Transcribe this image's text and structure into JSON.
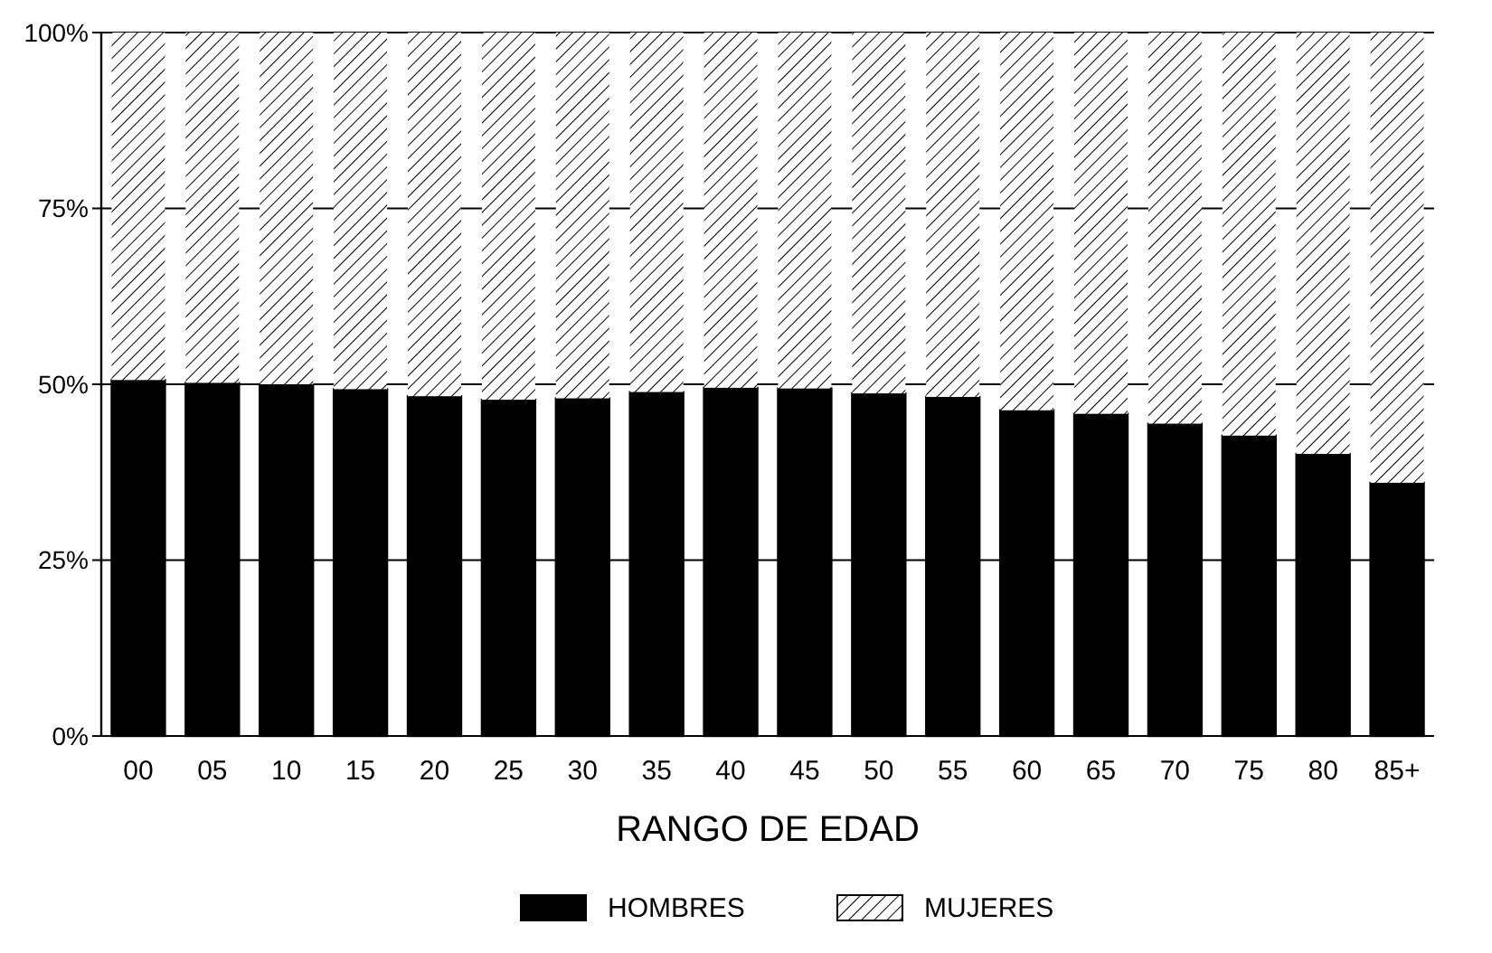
{
  "chart_data": {
    "type": "bar",
    "stacked": true,
    "xlabel": "RANGO DE EDAD",
    "categories": [
      "00",
      "05",
      "10",
      "15",
      "20",
      "25",
      "30",
      "35",
      "40",
      "45",
      "50",
      "55",
      "60",
      "65",
      "70",
      "75",
      "80",
      "85+"
    ],
    "series": [
      {
        "name": "HOMBRES",
        "color": "#000000",
        "values": [
          50.6,
          50.2,
          50,
          49.3,
          48.3,
          47.8,
          48,
          48.9,
          49.5,
          49.4,
          48.7,
          48.2,
          46.3,
          45.8,
          44.4,
          42.7,
          40.1,
          36
        ]
      },
      {
        "name": "MUJERES",
        "color": "#ffffff",
        "values": [
          49.4,
          49.8,
          50,
          50.7,
          51.7,
          52.2,
          52,
          51.1,
          50.5,
          50.6,
          51.3,
          51.8,
          53.7,
          54.2,
          55.6,
          57.3,
          59.9,
          64
        ]
      }
    ],
    "ylim": [
      0,
      100
    ],
    "yticks": [
      {
        "value": 0,
        "label": "0%"
      },
      {
        "value": 25,
        "label": "25%"
      },
      {
        "value": 50,
        "label": "50%"
      },
      {
        "value": 75,
        "label": "75%"
      },
      {
        "value": 100,
        "label": "100%"
      }
    ],
    "grid": "y",
    "legend": "bottom"
  }
}
